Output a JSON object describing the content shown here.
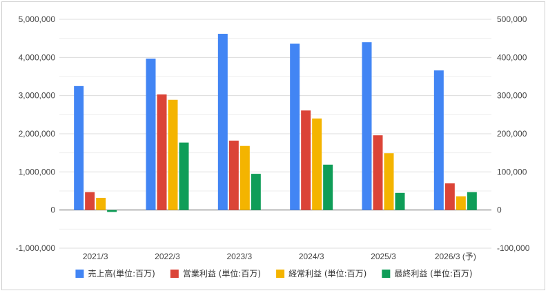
{
  "chart_data": {
    "type": "bar",
    "categories": [
      "2021/3",
      "2022/3",
      "2023/3",
      "2024/3",
      "2025/3",
      "2026/3 (予)"
    ],
    "series": [
      {
        "name": "売上高(単位:百万)",
        "axis": "left",
        "color": "#4285F4",
        "values": [
          3250000,
          3970000,
          4620000,
          4360000,
          4400000,
          3660000
        ]
      },
      {
        "name": "営業利益 (単位:百万)",
        "axis": "right",
        "color": "#DB4437",
        "values": [
          47000,
          303000,
          182000,
          261000,
          196000,
          70000
        ]
      },
      {
        "name": "経常利益 (単位:百万)",
        "axis": "right",
        "color": "#F4B400",
        "values": [
          32000,
          289000,
          168000,
          240000,
          149000,
          36000
        ]
      },
      {
        "name": "最終利益 (単位:百万)",
        "axis": "right",
        "color": "#0F9D58",
        "values": [
          -5000,
          177000,
          95000,
          119000,
          45000,
          47000
        ]
      }
    ],
    "y_left": {
      "min": -1000000,
      "max": 5000000,
      "ticks": [
        "-1,000,000",
        "0",
        "1,000,000",
        "2,000,000",
        "3,000,000",
        "4,000,000",
        "5,000,000"
      ]
    },
    "y_right": {
      "min": -100000,
      "max": 500000,
      "ticks": [
        "-100,000",
        "0",
        "100,000",
        "200,000",
        "300,000",
        "400,000",
        "500,000"
      ]
    },
    "grid": true,
    "legend_position": "bottom"
  }
}
